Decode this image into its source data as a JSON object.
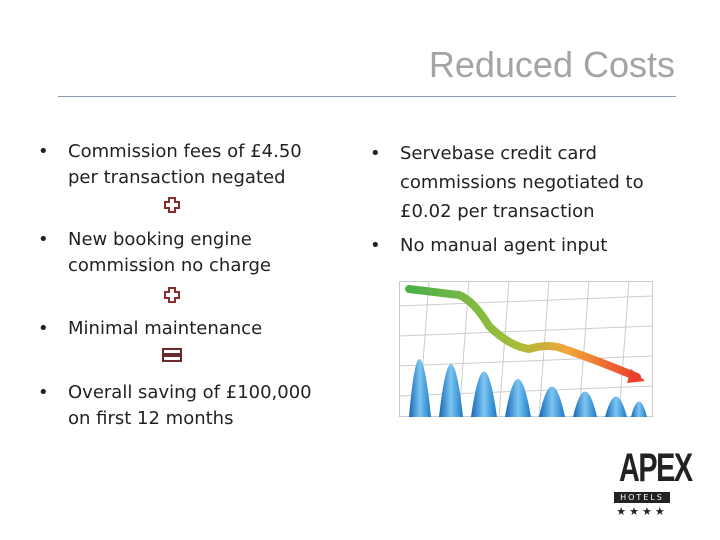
{
  "slide": {
    "title": "Reduced Costs",
    "left_bullets": [
      {
        "lines": [
          "Commission fees of £4.50",
          "per transaction negated"
        ]
      },
      {
        "lines": [
          "New booking engine",
          "commission no charge"
        ]
      },
      {
        "lines": [
          "Minimal maintenance"
        ]
      },
      {
        "lines": [
          "Overall saving of £100,000",
          "on first 12 months"
        ]
      }
    ],
    "right_bullets": [
      {
        "lines": [
          "Servebase credit card",
          "commissions negotiated to",
          "£0.02 per transaction"
        ]
      },
      {
        "lines": [
          "No manual agent input"
        ]
      }
    ],
    "logo": {
      "name": "APEX",
      "sub": "HOTELS",
      "stars": "★★★★"
    }
  }
}
